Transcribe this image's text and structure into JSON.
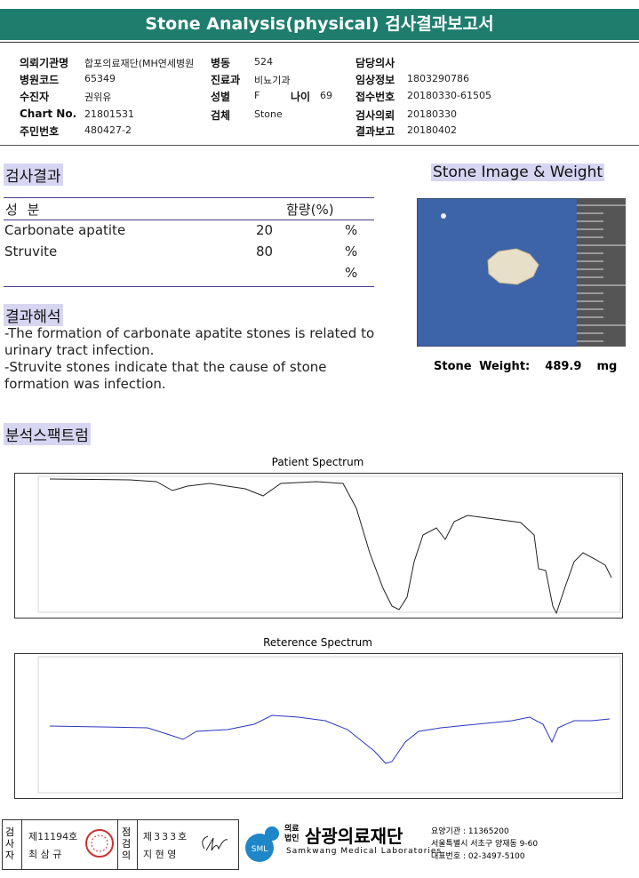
{
  "header": {
    "title": "Stone Analysis(physical) 검사결과보고서",
    "fields": [
      {
        "label": "의뢰기관명",
        "value": "합포의료재단(MH연세병원"
      },
      {
        "label": "병동",
        "value": "524"
      },
      {
        "label": "담당의사"
      },
      {
        "label": "병원코드",
        "value": "65349"
      },
      {
        "label": "진료과",
        "value": "비뇨기과"
      },
      {
        "label": "임상정보",
        "value": "1803290786"
      },
      {
        "label": "수진자",
        "value": "권위유"
      },
      {
        "label": "성별",
        "value": "F"
      },
      {
        "label": "나이",
        "value": "69"
      },
      {
        "label": "접수번호",
        "value": "20180330-61505"
      },
      {
        "label": "Chart No.",
        "value": "21801531"
      },
      {
        "label": "검체",
        "value": "Stone"
      },
      {
        "label": "검사의뢰",
        "value": "20180330"
      },
      {
        "label": "주민번호",
        "value": "480427-2"
      },
      {
        "label": "결과보고",
        "value": "20180402"
      }
    ]
  },
  "results": {
    "heading": "검사결과",
    "columns": [
      "성 분",
      "함량(%)"
    ],
    "rows": [
      {
        "name": "Carbonate apatite",
        "value": 20,
        "unit": "%"
      },
      {
        "name": "Struvite",
        "value": 80,
        "unit": "%"
      },
      {
        "unit": "%"
      }
    ]
  },
  "interpretation": {
    "heading": "결과해석",
    "lines": [
      " -The formation of carbonate apatite stones is related to urinary tract infection.",
      "-Struvite stones indicate that the cause of stone formation was infection."
    ]
  },
  "stone": {
    "heading": "Stone Image & Weight",
    "weight_label": "Stone Weight:",
    "weight": 489.9,
    "unit": "mg"
  },
  "spectrum": {
    "heading": "분석스팩트럼",
    "patient_title": "Patient Spectrum",
    "reference_title": "Reterence Spectrum"
  },
  "footer": {
    "examiner_label": "검사자",
    "examiner_no": "제11194호",
    "examiner_name": "최 삼 규",
    "checker_label": "점검의",
    "checker_no": "제333호",
    "checker_name": "지 현 영",
    "org_type": "의료법인",
    "org_name": "삼광의료재단",
    "org_en": "Samkwang Medical Laboratories",
    "org_code": "요양기관 : 11365200",
    "address": "서울특별시 서초구 양재동 9-60",
    "phone": "대표번호 : 02-3497-5100"
  }
}
